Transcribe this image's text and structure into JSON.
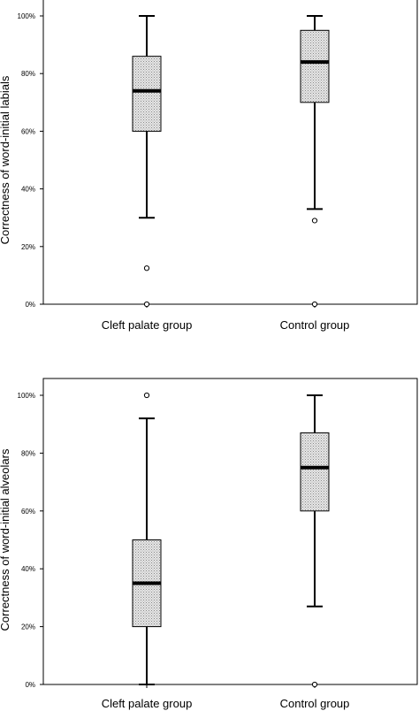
{
  "chart_data": [
    {
      "type": "boxplot",
      "ylabel": "Correctness of word-initial labials",
      "categories": [
        "Cleft palate group",
        "Control group"
      ],
      "yticks": [
        "0%",
        "20%",
        "40%",
        "60%",
        "80%",
        "100%"
      ],
      "ylim": [
        0,
        100
      ],
      "boxes": [
        {
          "name": "Cleft palate group",
          "whisker_low": 30,
          "q1": 60,
          "median": 74,
          "q3": 86,
          "whisker_high": 100,
          "outliers": [
            12.5,
            0
          ]
        },
        {
          "name": "Control group",
          "whisker_low": 33,
          "q1": 70,
          "median": 84,
          "q3": 95,
          "whisker_high": 100,
          "outliers": [
            29,
            0
          ]
        }
      ]
    },
    {
      "type": "boxplot",
      "ylabel": "Correctness of word-initial alveolars",
      "categories": [
        "Cleft palate group",
        "Control group"
      ],
      "yticks": [
        "0%",
        "20%",
        "40%",
        "60%",
        "80%",
        "100%"
      ],
      "ylim": [
        0,
        100
      ],
      "boxes": [
        {
          "name": "Cleft palate group",
          "whisker_low": 0,
          "q1": 20,
          "median": 35,
          "q3": 50,
          "whisker_high": 92,
          "outliers": [
            100
          ]
        },
        {
          "name": "Control group",
          "whisker_low": 27,
          "q1": 60,
          "median": 75,
          "q3": 87,
          "whisker_high": 100,
          "outliers": [
            0
          ]
        }
      ]
    }
  ]
}
